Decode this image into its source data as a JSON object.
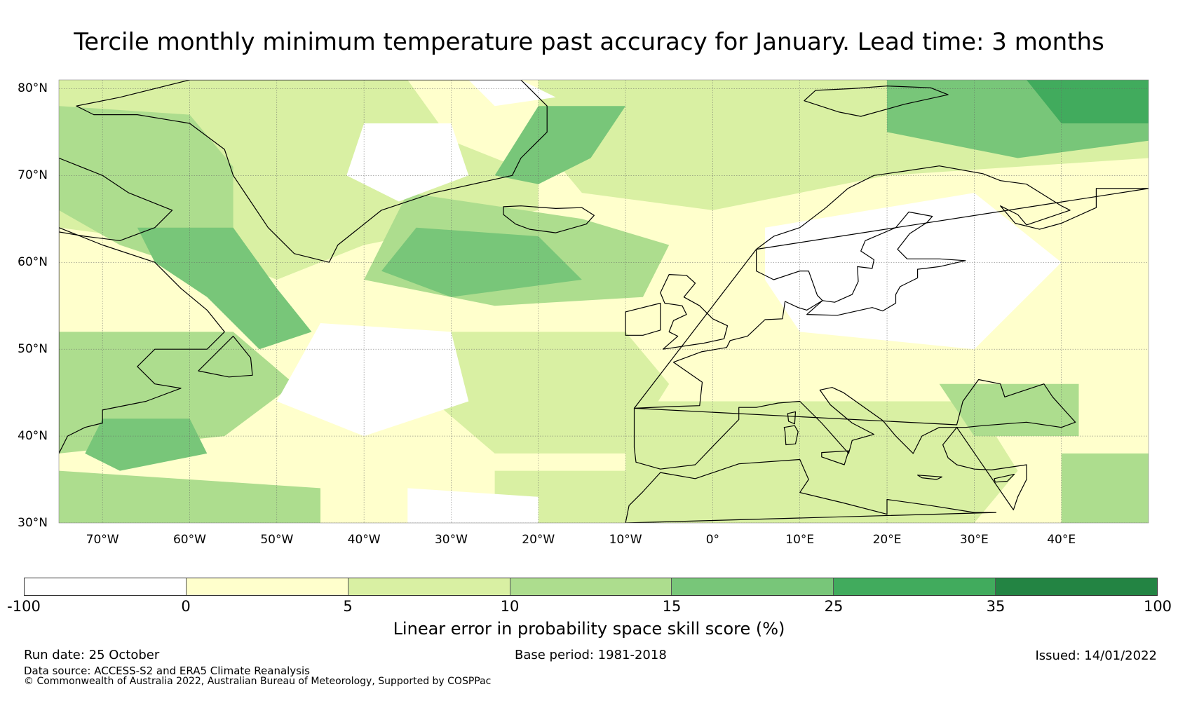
{
  "title": "Tercile monthly minimum temperature past accuracy for January. Lead time: 3 months",
  "map": {
    "region": "North Atlantic and Europe",
    "lat_range": [
      30,
      81
    ],
    "lon_range": [
      -75,
      50
    ],
    "lat_labels": [
      "80°N",
      "70°N",
      "60°N",
      "50°N",
      "40°N",
      "30°N"
    ],
    "lat_values": [
      80,
      70,
      60,
      50,
      40,
      30
    ],
    "lon_labels": [
      "70°W",
      "60°W",
      "50°W",
      "40°W",
      "30°W",
      "20°W",
      "10°W",
      "0°",
      "10°E",
      "20°E",
      "30°E",
      "40°E"
    ],
    "lon_values": [
      -70,
      -60,
      -50,
      -40,
      -30,
      -20,
      -10,
      0,
      10,
      20,
      30,
      40
    ],
    "gridlines": true,
    "colors": {
      "skill_class_0": "#ffffff",
      "skill_class_1": "#ffffcc",
      "skill_class_2": "#d9f0a3",
      "skill_class_3": "#addd8e",
      "skill_class_4": "#78c679",
      "skill_class_5": "#41ab5d",
      "skill_class_6": "#238443"
    }
  },
  "colorbar": {
    "ticks": [
      "-100",
      "0",
      "5",
      "10",
      "15",
      "25",
      "35",
      "100"
    ],
    "bounds": [
      -100,
      0,
      5,
      10,
      15,
      25,
      35,
      100
    ],
    "segment_colors": [
      "#ffffff",
      "#ffffcc",
      "#d9f0a3",
      "#addd8e",
      "#78c679",
      "#41ab5d",
      "#238443"
    ],
    "label": "Linear error in probability space skill score (%)"
  },
  "footer": {
    "run_date": "Run date: 25 October",
    "base_period": "Base period: 1981-2018",
    "issued": "Issued: 14/01/2022",
    "data_source": "Data source: ACCESS-S2 and ERA5 Climate Reanalysis",
    "copyright": "© Commonwealth of Australia 2022, Australian Bureau of Meteorology, Supported by COSPPac"
  }
}
